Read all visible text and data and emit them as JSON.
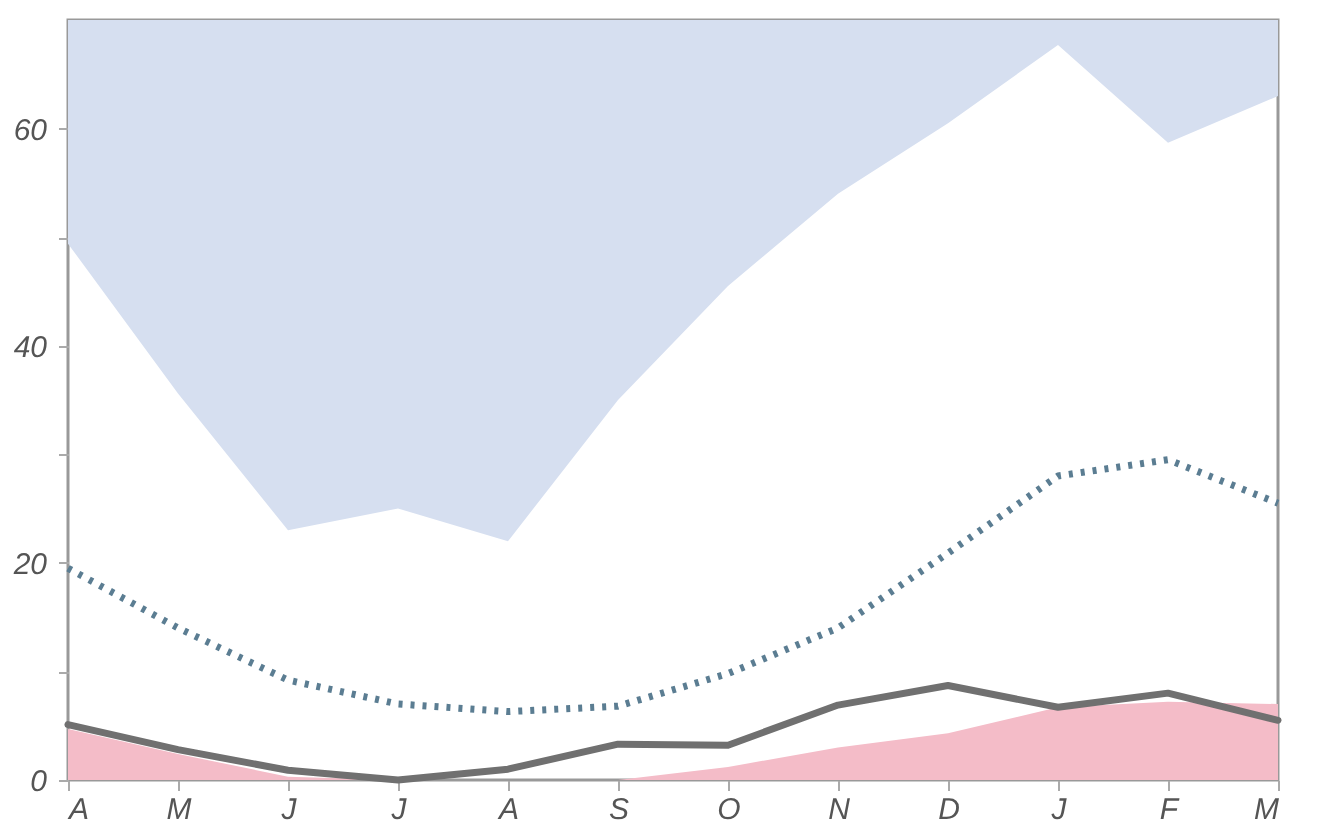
{
  "chart_data": {
    "type": "line",
    "categories": [
      "A",
      "M",
      "J",
      "J",
      "A",
      "S",
      "O",
      "N",
      "D",
      "J",
      "F",
      "M"
    ],
    "ylim": [
      0,
      70
    ],
    "yticks": [
      0,
      {
        "value": 10,
        "label": null
      },
      20,
      {
        "value": 30,
        "label": null
      },
      40,
      {
        "value": 50,
        "label": null
      },
      60
    ],
    "grid": false,
    "series": [
      {
        "type": "area",
        "color": "#d6dff0",
        "values": [
          null,
          null,
          null,
          null,
          null,
          null,
          null,
          null,
          null,
          null,
          null,
          null
        ],
        "lower": [
          49.4,
          35.6,
          23,
          25,
          22,
          35,
          45.5,
          54,
          60.5,
          67.7,
          58.7,
          63
        ],
        "upper": [
          70,
          70,
          70,
          70,
          70,
          70,
          70,
          70,
          70,
          70,
          70,
          70
        ]
      },
      {
        "type": "area",
        "color": "#f4bcc8",
        "values": [
          4.7,
          2.4,
          0.3,
          0,
          0,
          0,
          1.2,
          3,
          4.3,
          6.7,
          7.2,
          7
        ]
      },
      {
        "color": "#5b7d92",
        "line_style": "dotted",
        "values": [
          19.5,
          14,
          9.2,
          7,
          6.3,
          6.8,
          9.8,
          14,
          20.9,
          28,
          29.5,
          25.5
        ]
      },
      {
        "color": "#707070",
        "line_style": "solid",
        "values": [
          5.1,
          2.8,
          0.9,
          0,
          1,
          3.3,
          3.2,
          6.9,
          8.7,
          6.7,
          8,
          5.5
        ]
      }
    ]
  }
}
